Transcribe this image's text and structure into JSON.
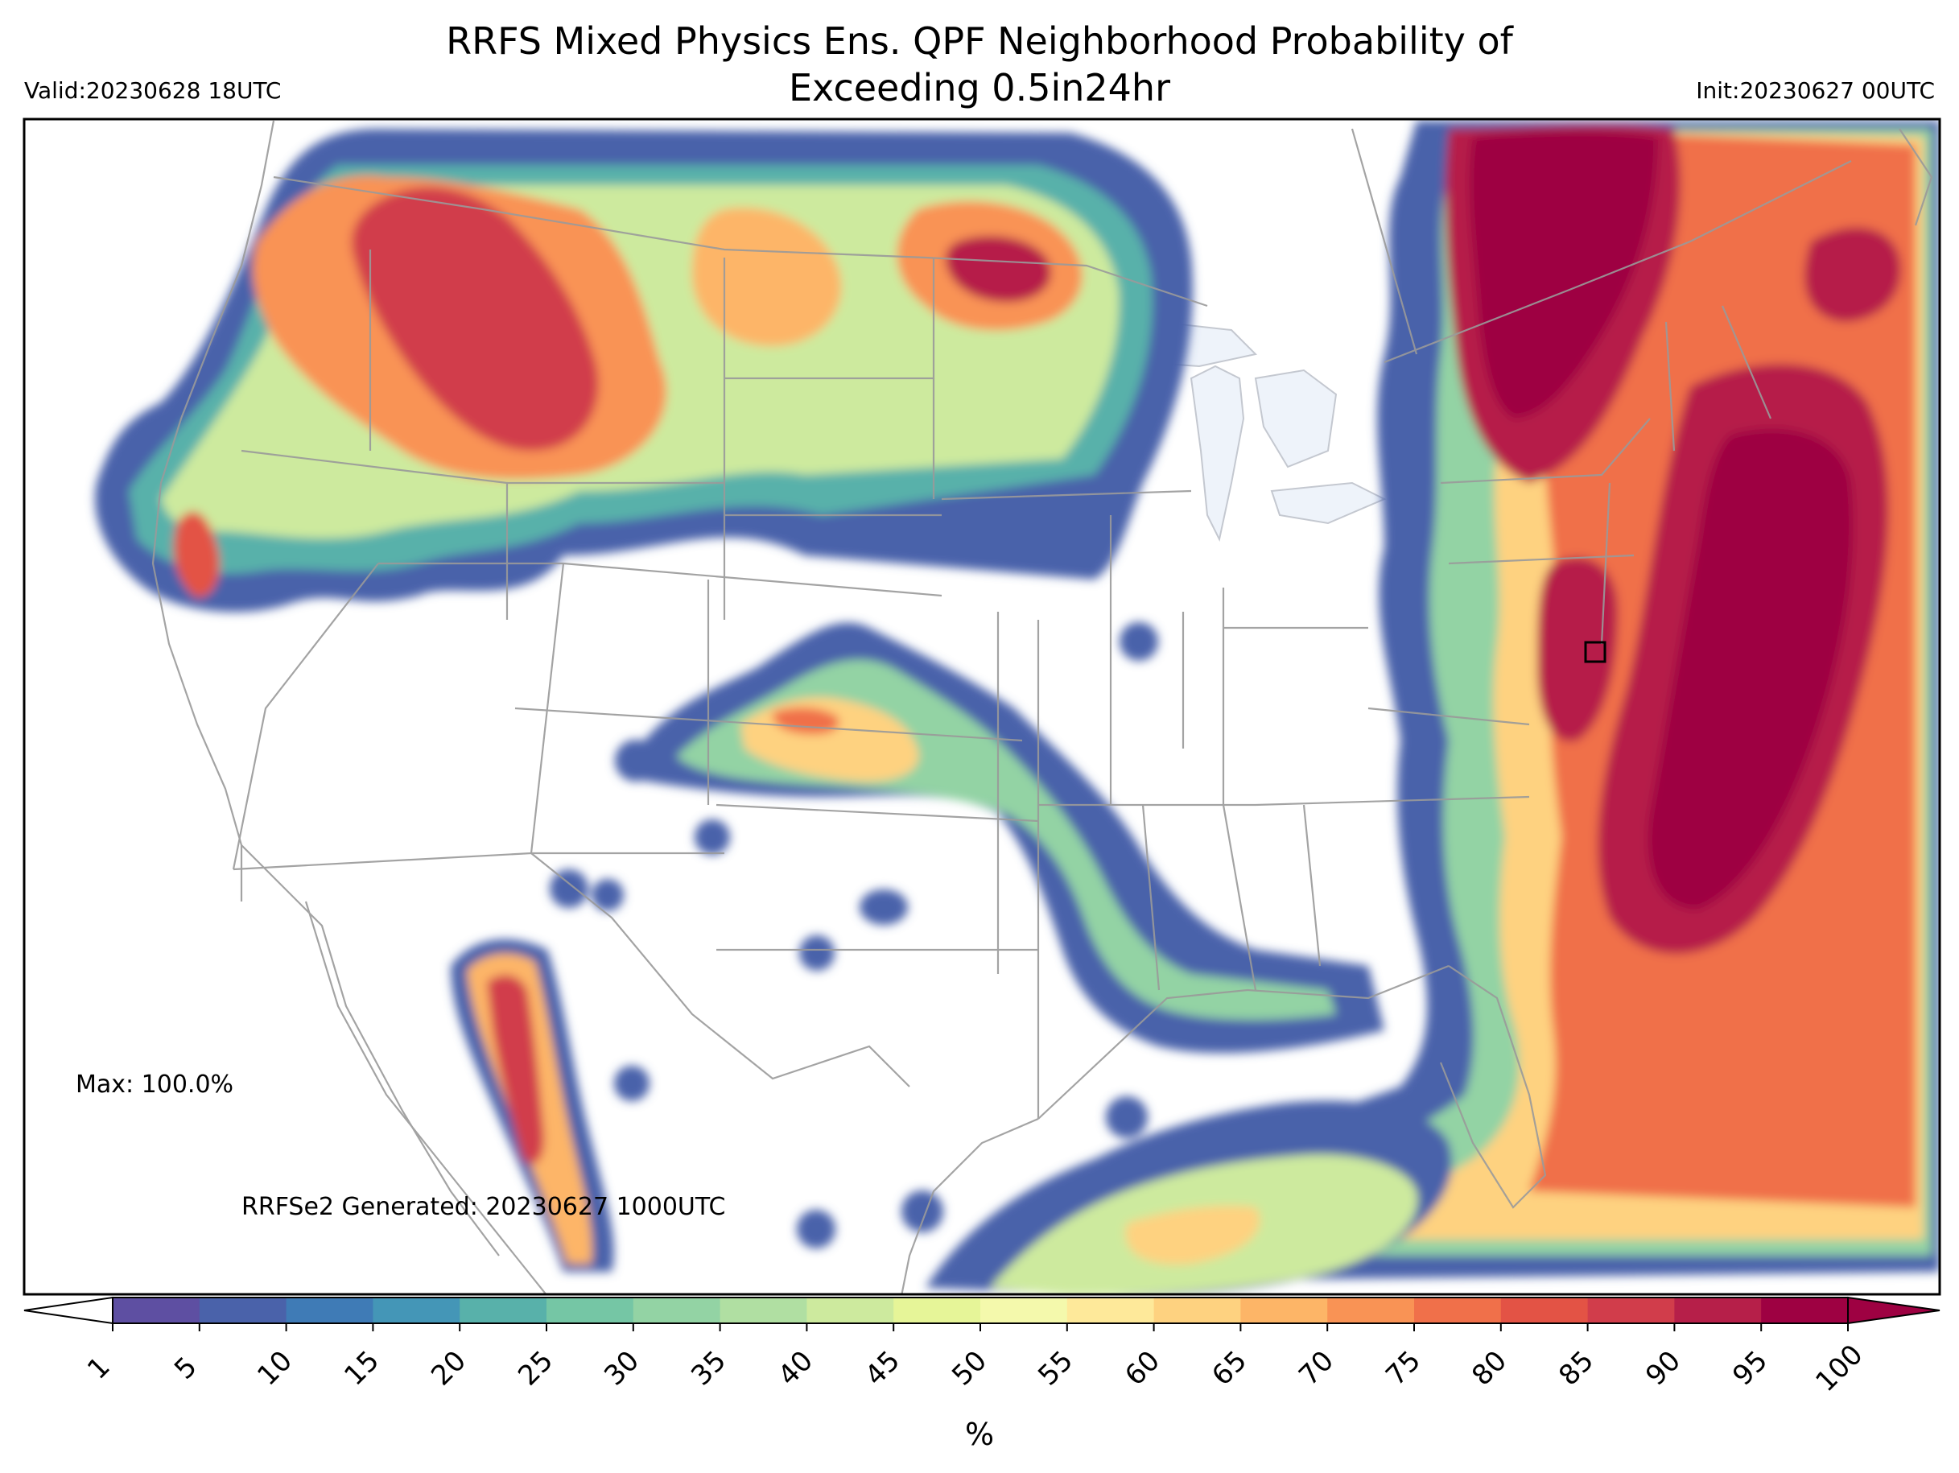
{
  "title": {
    "line1": "RRFS Mixed Physics Ens. QPF Neighborhood Probability of",
    "line2": "Exceeding 0.5in24hr"
  },
  "valid_label": "Valid:20230628 18UTC",
  "init_label": "Init:20230627 00UTC",
  "max_label": "Max: 100.0%",
  "generated_label": "RRFSe2 Generated: 20230627 1000UTC",
  "colorbar": {
    "ticks": [
      "1",
      "5",
      "10",
      "15",
      "20",
      "25",
      "30",
      "35",
      "40",
      "45",
      "50",
      "55",
      "60",
      "65",
      "70",
      "75",
      "80",
      "85",
      "90",
      "95",
      "100"
    ],
    "unit_label": "%",
    "colors": [
      "#5e4fa2",
      "#4a62aa",
      "#3f7bb6",
      "#4496b7",
      "#58b1aa",
      "#75c6a5",
      "#93d3a4",
      "#b0dfa2",
      "#cdea9e",
      "#e6f598",
      "#f4f9ac",
      "#fee99a",
      "#fed280",
      "#fdb567",
      "#f99355",
      "#f0704a",
      "#e35345",
      "#d13d4b",
      "#b61f49",
      "#9e0142"
    ]
  },
  "map_layers": {
    "land_outline_color": "#b0b0b0",
    "lakes_color": "#eef3fa"
  }
}
